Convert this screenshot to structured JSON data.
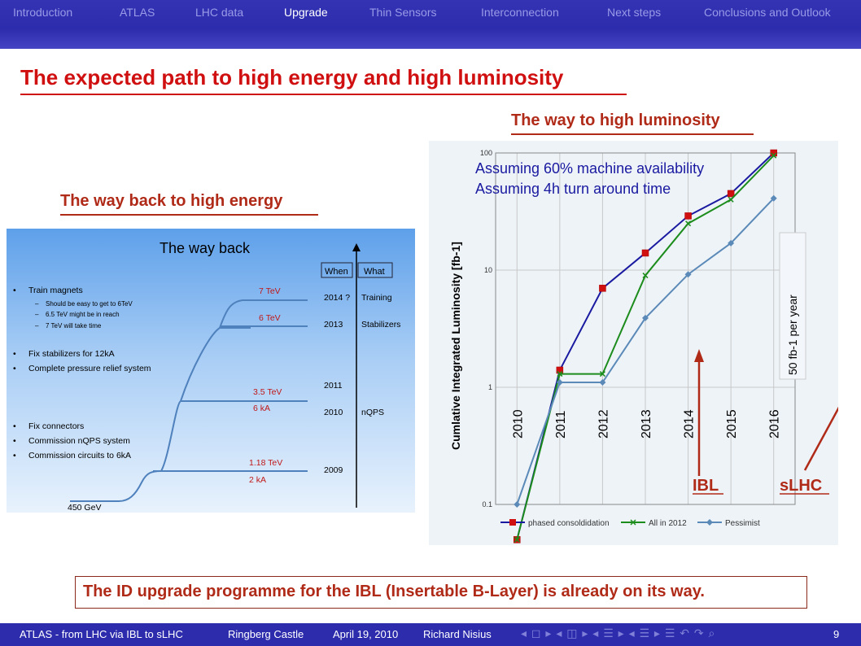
{
  "nav": {
    "items": [
      "Introduction",
      "ATLAS",
      "LHC data",
      "Upgrade",
      "Thin Sensors",
      "Interconnection",
      "Next steps",
      "Conclusions and Outlook"
    ],
    "active_index": 3
  },
  "title": "The expected path to high energy and high luminosity",
  "left": {
    "heading": "The way back to high energy",
    "figure": {
      "title": "The way back",
      "header_when": "When",
      "header_what": "What",
      "bullets": [
        {
          "text": "Train magnets",
          "subs": [
            "Should be easy to get to 6TeV",
            "6.5 TeV might be in reach",
            "7 TeV will take time"
          ]
        },
        {
          "text": "Fix stabilizers for 12kA",
          "subs": []
        },
        {
          "text": "Complete pressure relief system",
          "subs": []
        },
        {
          "text": "Fix connectors",
          "subs": []
        },
        {
          "text": "Commission nQPS system",
          "subs": []
        },
        {
          "text": "Commission circuits to 6kA",
          "subs": []
        }
      ],
      "levels": [
        "7 TeV",
        "6 TeV",
        "3.5 TeV",
        "6 kA",
        "1.18 TeV",
        "2 kA",
        "450 GeV"
      ],
      "timeline": [
        {
          "when": "2014 ?",
          "what": "Training"
        },
        {
          "when": "2013",
          "what": "Stabilizers"
        },
        {
          "when": "2011",
          "what": ""
        },
        {
          "when": "2010",
          "what": "nQPS"
        },
        {
          "when": "2009",
          "what": ""
        }
      ]
    }
  },
  "right": {
    "heading": "The way to high luminosity",
    "notes": [
      "Assuming 60% machine availability",
      "Assuming 4h turn around time"
    ],
    "side_note": "50 fb-1 per year",
    "markers": [
      "IBL",
      "sLHC"
    ]
  },
  "chart_data": {
    "type": "line",
    "x": [
      "2010",
      "2011",
      "2012",
      "2013",
      "2014",
      "2015",
      "2016"
    ],
    "ylabel": "Cumlative Integrated Luminosity [fb-1]",
    "yscale": "log",
    "ylim": [
      0.1,
      100
    ],
    "yticks": [
      "100",
      "10",
      "1",
      "0.1"
    ],
    "legend_position": "bottom",
    "series": [
      {
        "name": "phased consoldidation",
        "color": "#1a1aa0",
        "values": [
          0.05,
          1.4,
          7,
          14,
          29,
          45,
          100
        ]
      },
      {
        "name": "All in 2012",
        "color": "#1c8c1c",
        "values": [
          0.05,
          1.3,
          1.3,
          9,
          25,
          40,
          95
        ]
      },
      {
        "name": "Pessimist",
        "color": "#5b8ab8",
        "values": [
          0.1,
          1.1,
          1.1,
          3.9,
          9.2,
          17,
          41
        ]
      }
    ]
  },
  "callout": "The ID upgrade programme for the IBL (Insertable B-Layer) is already on its way.",
  "footer": {
    "items": [
      "ATLAS - from LHC via IBL to sLHC",
      "Ringberg Castle",
      "April 19, 2010",
      "Richard Nisius"
    ],
    "nav_icons": "◂ ◻ ▸ ◂ ◫ ▸ ◂ ☰ ▸ ◂ ☰ ▸   ☰   ↶ ↷ ⌕",
    "page": "9"
  }
}
